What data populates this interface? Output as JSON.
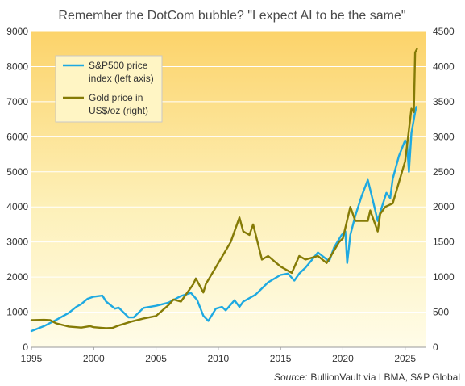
{
  "chart_data": {
    "type": "line",
    "title": "Remember the DotCom bubble? \"I expect AI to be the same\"",
    "source_label": "Source:",
    "source_text": "BullionVault via LBMA, S&P Global",
    "x_ticks": [
      "1995",
      "2000",
      "2005",
      "2010",
      "2015",
      "2020",
      "2025"
    ],
    "xlim": [
      1995,
      2026.7
    ],
    "y_left": {
      "ticks": [
        "0",
        "1000",
        "2000",
        "3000",
        "4000",
        "5000",
        "6000",
        "7000",
        "8000",
        "9000"
      ],
      "ylim": [
        0,
        9000
      ]
    },
    "y_right": {
      "ticks": [
        "0",
        "500",
        "1000",
        "1500",
        "2000",
        "2500",
        "3000",
        "3500",
        "4000",
        "4500"
      ],
      "ylim": [
        0,
        4500
      ]
    },
    "legend": {
      "placement": "top-left",
      "items": [
        {
          "line1": "S&P500 price",
          "line2": "index (left axis)",
          "color": "#1ea9e1"
        },
        {
          "line1": "Gold price in",
          "line2": "US$/oz (right)",
          "color": "#857b06"
        }
      ]
    },
    "series": [
      {
        "name": "S&P500 price index (left axis)",
        "axis": "left",
        "color": "#1ea9e1",
        "x": [
          1995.0,
          1996.0,
          1997.0,
          1998.0,
          1998.6,
          1999.0,
          1999.5,
          2000.0,
          2000.7,
          2001.0,
          2001.7,
          2002.0,
          2002.8,
          2003.2,
          2004.0,
          2005.0,
          2006.0,
          2007.0,
          2007.8,
          2008.3,
          2008.8,
          2009.2,
          2009.8,
          2010.3,
          2010.6,
          2011.3,
          2011.7,
          2012.0,
          2013.0,
          2014.0,
          2015.0,
          2015.6,
          2016.1,
          2016.5,
          2017.0,
          2018.0,
          2018.9,
          2019.3,
          2019.9,
          2020.2,
          2020.35,
          2020.6,
          2021.0,
          2021.5,
          2022.0,
          2022.4,
          2022.8,
          2023.0,
          2023.5,
          2023.8,
          2024.0,
          2024.5,
          2025.0,
          2025.15,
          2025.3,
          2025.5,
          2025.8,
          2025.9
        ],
        "values": [
          460,
          600,
          780,
          980,
          1150,
          1230,
          1380,
          1440,
          1470,
          1300,
          1100,
          1130,
          850,
          850,
          1120,
          1180,
          1270,
          1460,
          1550,
          1350,
          900,
          750,
          1100,
          1150,
          1050,
          1340,
          1150,
          1300,
          1500,
          1850,
          2060,
          2100,
          1900,
          2100,
          2270,
          2700,
          2450,
          2850,
          3200,
          3300,
          2400,
          3200,
          3750,
          4300,
          4770,
          4200,
          3600,
          3850,
          4400,
          4250,
          4800,
          5450,
          5900,
          5800,
          5000,
          6100,
          6700,
          6850
        ]
      },
      {
        "name": "Gold price in US$/oz (right)",
        "axis": "right",
        "color": "#857b06",
        "x": [
          1995.0,
          1996.0,
          1996.5,
          1997.0,
          1998.0,
          1999.0,
          1999.7,
          2000.0,
          2001.0,
          2001.5,
          2002.0,
          2003.0,
          2004.0,
          2005.0,
          2006.0,
          2006.4,
          2007.0,
          2008.0,
          2008.2,
          2008.8,
          2009.0,
          2010.0,
          2011.0,
          2011.7,
          2012.0,
          2012.5,
          2012.8,
          2013.5,
          2014.0,
          2015.0,
          2015.9,
          2016.5,
          2017.0,
          2018.0,
          2018.7,
          2019.0,
          2019.7,
          2020.0,
          2020.6,
          2021.0,
          2022.0,
          2022.2,
          2022.8,
          2023.0,
          2023.4,
          2024.0,
          2024.5,
          2025.0,
          2025.3,
          2025.5,
          2025.7,
          2025.8,
          2025.95
        ],
        "values": [
          385,
          390,
          385,
          340,
          295,
          280,
          300,
          285,
          270,
          275,
          310,
          365,
          410,
          445,
          600,
          680,
          650,
          900,
          980,
          780,
          900,
          1200,
          1500,
          1850,
          1650,
          1600,
          1750,
          1250,
          1300,
          1150,
          1060,
          1300,
          1250,
          1300,
          1200,
          1290,
          1500,
          1550,
          2000,
          1800,
          1800,
          1950,
          1650,
          1900,
          2000,
          2050,
          2350,
          2650,
          3100,
          3400,
          3350,
          4200,
          4250
        ]
      }
    ]
  }
}
